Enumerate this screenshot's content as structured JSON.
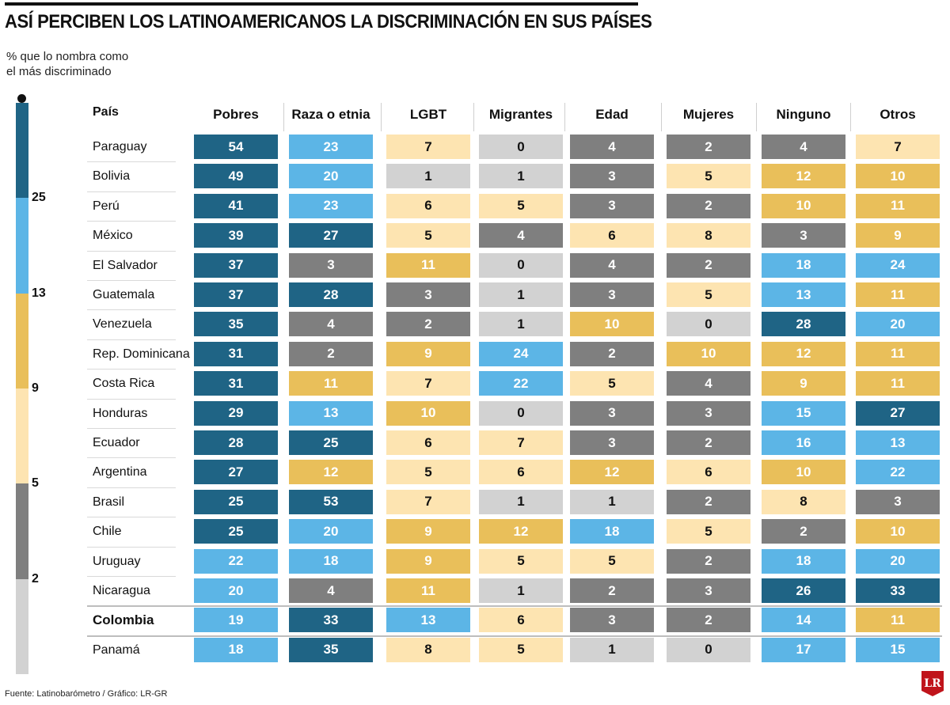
{
  "title": "ASÍ PERCIBEN LOS LATINOAMERICANOS LA DISCRIMINACIÓN EN SUS PAÍSES",
  "legend": {
    "title_line1": "% que lo nombra como",
    "title_line2": "el más discriminado",
    "thresholds": [
      "25",
      "13",
      "9",
      "5",
      "2"
    ],
    "colors": [
      "#1f6485",
      "#5cb5e6",
      "#e9bf5a",
      "#fde4b1",
      "#7f7f7f",
      "#d2d2d2"
    ]
  },
  "footer": "Fuente: Latinobarómetro / Gráfico: LR-GR",
  "logo_text": "LR",
  "chart_data": {
    "type": "table",
    "title": "ASÍ PERCIBEN LOS LATINOAMERICANOS LA DISCRIMINACIÓN EN SUS PAÍSES",
    "row_header": "País",
    "columns": [
      "Pobres",
      "Raza o etnia",
      "LGBT",
      "Migrantes",
      "Edad",
      "Mujeres",
      "Ninguno",
      "Otros"
    ],
    "rows": [
      {
        "country": "Paraguay",
        "values": [
          54,
          23,
          7,
          0,
          4,
          2,
          4,
          7
        ]
      },
      {
        "country": "Bolivia",
        "values": [
          49,
          20,
          1,
          1,
          3,
          5,
          12,
          10
        ]
      },
      {
        "country": "Perú",
        "values": [
          41,
          23,
          6,
          5,
          3,
          2,
          10,
          11
        ]
      },
      {
        "country": "México",
        "values": [
          39,
          27,
          5,
          4,
          6,
          8,
          3,
          9
        ]
      },
      {
        "country": "El Salvador",
        "values": [
          37,
          3,
          11,
          0,
          4,
          2,
          18,
          24
        ]
      },
      {
        "country": "Guatemala",
        "values": [
          37,
          28,
          3,
          1,
          3,
          5,
          13,
          11
        ]
      },
      {
        "country": "Venezuela",
        "values": [
          35,
          4,
          2,
          1,
          10,
          0,
          28,
          20
        ]
      },
      {
        "country": "Rep. Dominicana",
        "values": [
          31,
          2,
          9,
          24,
          2,
          10,
          12,
          11
        ]
      },
      {
        "country": "Costa Rica",
        "values": [
          31,
          11,
          7,
          22,
          5,
          4,
          9,
          11
        ]
      },
      {
        "country": "Honduras",
        "values": [
          29,
          13,
          10,
          0,
          3,
          3,
          15,
          27
        ]
      },
      {
        "country": "Ecuador",
        "values": [
          28,
          25,
          6,
          7,
          3,
          2,
          16,
          13
        ]
      },
      {
        "country": "Argentina",
        "values": [
          27,
          12,
          5,
          6,
          12,
          6,
          10,
          22
        ]
      },
      {
        "country": "Brasil",
        "values": [
          25,
          53,
          7,
          1,
          1,
          2,
          8,
          3
        ]
      },
      {
        "country": "Chile",
        "values": [
          25,
          20,
          9,
          12,
          18,
          5,
          2,
          10
        ]
      },
      {
        "country": "Uruguay",
        "values": [
          22,
          18,
          9,
          5,
          5,
          2,
          18,
          20
        ]
      },
      {
        "country": "Nicaragua",
        "values": [
          20,
          4,
          11,
          1,
          2,
          3,
          26,
          33
        ]
      },
      {
        "country": "Colombia",
        "values": [
          19,
          33,
          13,
          6,
          3,
          2,
          14,
          11
        ]
      },
      {
        "country": "Panamá",
        "values": [
          18,
          35,
          8,
          5,
          1,
          0,
          17,
          15
        ]
      }
    ]
  }
}
